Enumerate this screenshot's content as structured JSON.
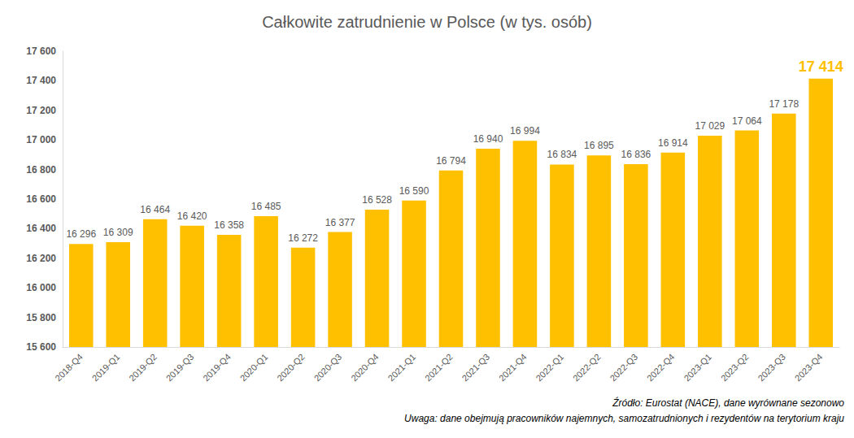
{
  "chart_data": {
    "type": "bar",
    "title": "Całkowite zatrudnienie w Polsce (w tys. osób)",
    "categories": [
      "2018-Q4",
      "2019-Q1",
      "2019-Q2",
      "2019-Q3",
      "2019-Q4",
      "2020-Q1",
      "2020-Q2",
      "2020-Q3",
      "2020-Q4",
      "2021-Q1",
      "2021-Q2",
      "2021-Q3",
      "2021-Q4",
      "2022-Q1",
      "2022-Q2",
      "2022-Q3",
      "2022-Q4",
      "2023-Q1",
      "2023-Q2",
      "2023-Q3",
      "2023-Q4"
    ],
    "values": [
      16296,
      16309,
      16464,
      16420,
      16358,
      16485,
      16272,
      16377,
      16528,
      16590,
      16794,
      16940,
      16994,
      16834,
      16895,
      16836,
      16914,
      17029,
      17064,
      17178,
      17414
    ],
    "value_labels": [
      "16 296",
      "16 309",
      "16 464",
      "16 420",
      "16 358",
      "16 485",
      "16 272",
      "16 377",
      "16 528",
      "16 590",
      "16 794",
      "16 940",
      "16 994",
      "16 834",
      "16 895",
      "16 836",
      "16 914",
      "17 029",
      "17 064",
      "17 178",
      "17 414"
    ],
    "data_labels": true,
    "color": "#FFC000",
    "ylim": [
      15600,
      17600
    ],
    "yticks": [
      {
        "value": 15600,
        "label": "15 600"
      },
      {
        "value": 15800,
        "label": "15 800"
      },
      {
        "value": 16000,
        "label": "16 000"
      },
      {
        "value": 16200,
        "label": "16 200"
      },
      {
        "value": 16400,
        "label": "16 400"
      },
      {
        "value": 16600,
        "label": "16 600"
      },
      {
        "value": 16800,
        "label": "16 800"
      },
      {
        "value": 17000,
        "label": "17 000"
      },
      {
        "value": 17200,
        "label": "17 200"
      },
      {
        "value": 17400,
        "label": "17 400"
      },
      {
        "value": 17600,
        "label": "17 600"
      }
    ],
    "grid": false,
    "annotations": [
      "Źródło: Eurostat (NACE), dane wyrównane sezonowo",
      "Uwaga: dane obejmują pracowników najemnych, samozatrudnionych i rezydentów na terytorium kraju"
    ]
  }
}
